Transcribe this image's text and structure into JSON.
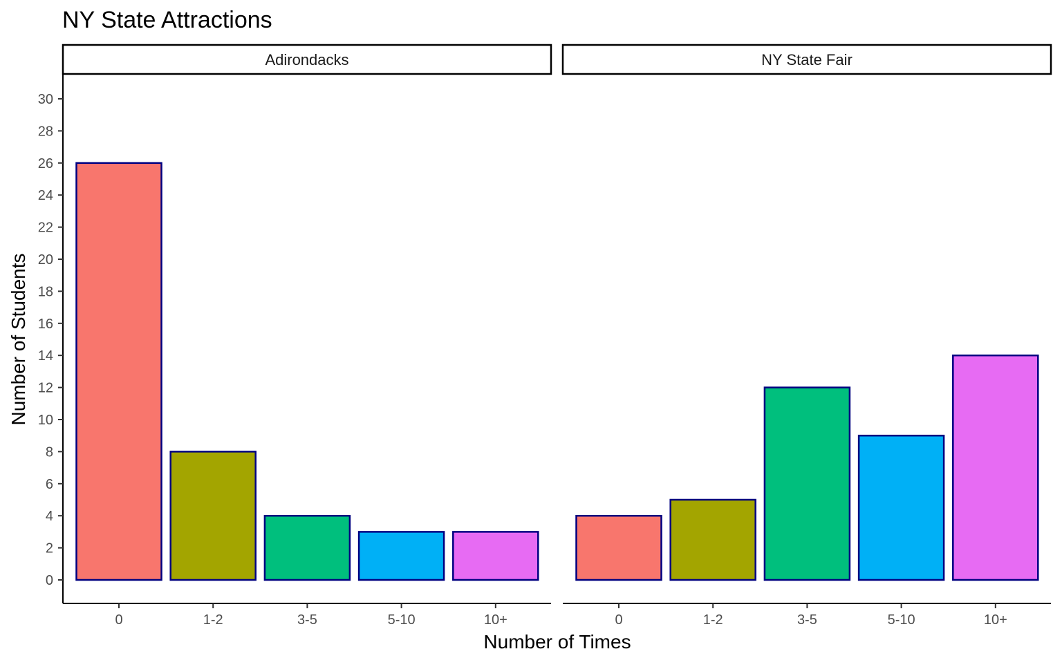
{
  "chart_data": {
    "type": "bar",
    "title": "NY State Attractions",
    "xlabel": "Number of Times",
    "ylabel": "Number of Students",
    "categories": [
      "0",
      "1-2",
      "3-5",
      "5-10",
      "10+"
    ],
    "ylim": [
      0,
      30
    ],
    "yticks": [
      0,
      2,
      4,
      6,
      8,
      10,
      12,
      14,
      16,
      18,
      20,
      22,
      24,
      26,
      28,
      30
    ],
    "grid": false,
    "legend": "none",
    "bar_fill_colors": [
      "#F8766D",
      "#A3A500",
      "#00BF7D",
      "#00B0F6",
      "#E76BF3"
    ],
    "bar_outline_color": "#000080",
    "facets": [
      {
        "label": "Adirondacks",
        "values": [
          26,
          8,
          4,
          3,
          3
        ]
      },
      {
        "label": "NY State Fair",
        "values": [
          4,
          5,
          12,
          9,
          14
        ]
      }
    ]
  }
}
